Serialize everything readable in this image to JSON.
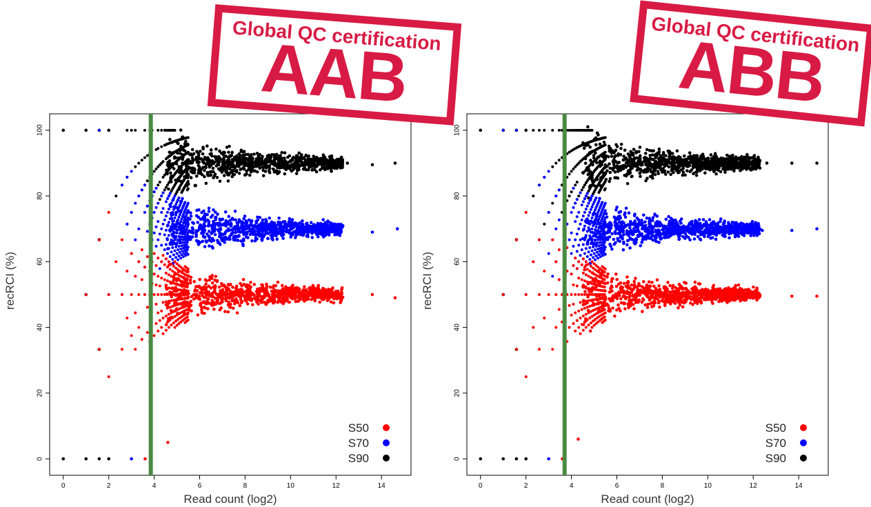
{
  "colors": {
    "S50": "#ff0000",
    "S70": "#0000ff",
    "S90": "#000000",
    "threshold": "#4a8a42",
    "stamp": "#d81b44"
  },
  "chart_data": [
    {
      "type": "scatter",
      "xlabel": "Read count (log2)",
      "ylabel": "recRCI (%)",
      "xlim": [
        -0.6,
        15.3
      ],
      "ylim": [
        -5,
        105
      ],
      "x_ticks": [
        "0",
        "2",
        "4",
        "6",
        "8",
        "10",
        "12",
        "14"
      ],
      "y_ticks": [
        "0",
        "20",
        "40",
        "60",
        "80",
        "100"
      ],
      "threshold_x": 3.85,
      "legend": {
        "position": "bottom-right",
        "entries": [
          "S50",
          "S70",
          "S90"
        ]
      },
      "series": [
        {
          "name": "S50",
          "color": "#ff0000",
          "center": 50,
          "peak_x": 8.2,
          "points": [
            [
              3.6,
              0
            ],
            [
              4.6,
              5
            ],
            [
              13.6,
              50
            ],
            [
              14.6,
              49
            ],
            [
              12.2,
              50
            ]
          ]
        },
        {
          "name": "S70",
          "color": "#0000ff",
          "center": 70,
          "peak_x": 7.6,
          "points": [
            [
              3.0,
              0
            ],
            [
              12.2,
              71
            ],
            [
              13.6,
              69
            ],
            [
              14.7,
              70
            ]
          ]
        },
        {
          "name": "S90",
          "color": "#000000",
          "center": 90,
          "peak_x": 6.7,
          "points": [
            [
              0,
              0
            ],
            [
              1,
              0
            ],
            [
              1.58,
              0
            ],
            [
              2,
              0
            ],
            [
              0,
              100
            ],
            [
              1,
              100
            ],
            [
              1.58,
              100
            ],
            [
              2,
              100
            ],
            [
              1,
              50
            ],
            [
              1.58,
              66.7
            ],
            [
              1.58,
              33.3
            ],
            [
              12.5,
              90
            ],
            [
              13.6,
              89.5
            ],
            [
              14.6,
              90
            ]
          ]
        }
      ],
      "stamp": {
        "title": "Global QC certification",
        "grade": "AAB"
      }
    },
    {
      "type": "scatter",
      "xlabel": "Read count (log2)",
      "ylabel": "recRCI (%)",
      "xlim": [
        -0.6,
        15.3
      ],
      "ylim": [
        -5,
        105
      ],
      "x_ticks": [
        "0",
        "2",
        "4",
        "6",
        "8",
        "10",
        "12",
        "14"
      ],
      "y_ticks": [
        "0",
        "20",
        "40",
        "60",
        "80",
        "100"
      ],
      "threshold_x": 3.7,
      "legend": {
        "position": "bottom-right",
        "entries": [
          "S50",
          "S70",
          "S90"
        ]
      },
      "series": [
        {
          "name": "S50",
          "color": "#ff0000",
          "center": 50,
          "peak_x": 8.4,
          "points": [
            [
              3.6,
              0
            ],
            [
              4.3,
              6
            ],
            [
              13.7,
              49.5
            ],
            [
              14.8,
              49.5
            ]
          ]
        },
        {
          "name": "S70",
          "color": "#0000ff",
          "center": 70,
          "peak_x": 7.6,
          "points": [
            [
              3.0,
              0
            ],
            [
              12.4,
              69.5
            ],
            [
              13.7,
              69.5
            ],
            [
              14.8,
              70
            ]
          ]
        },
        {
          "name": "S90",
          "color": "#000000",
          "center": 90,
          "peak_x": 7.0,
          "points": [
            [
              0,
              0
            ],
            [
              1,
              0
            ],
            [
              1.58,
              0
            ],
            [
              2,
              0
            ],
            [
              0,
              100
            ],
            [
              1,
              100
            ],
            [
              1.58,
              100
            ],
            [
              2,
              100
            ],
            [
              1,
              50
            ],
            [
              1.58,
              66.7
            ],
            [
              1.58,
              33.3
            ],
            [
              12.6,
              90
            ],
            [
              13.7,
              90
            ],
            [
              14.8,
              90
            ]
          ]
        }
      ],
      "stamp": {
        "title": "Global QC certification",
        "grade": "ABB"
      }
    }
  ]
}
